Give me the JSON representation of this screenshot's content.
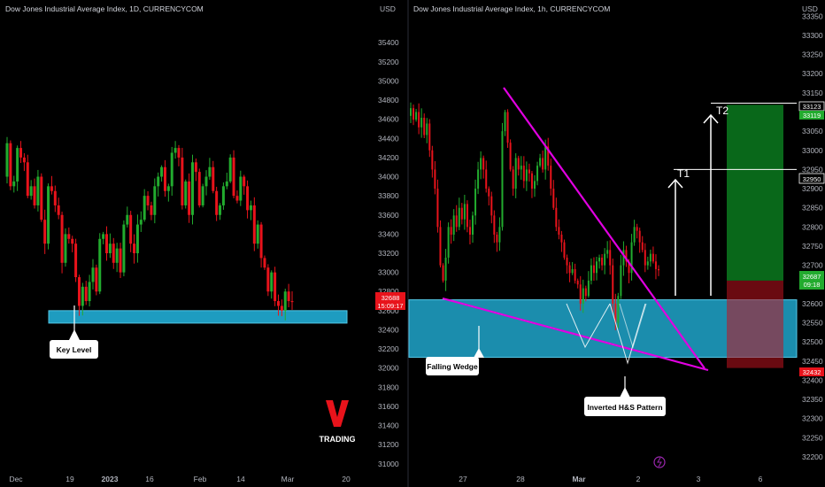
{
  "chart_data": [
    {
      "type": "candlestick",
      "title": "Dow Jones Industrial Average Index, 1D, CURRENCYCOM",
      "axis_unit": "USD",
      "x_ticks": [
        "Dec",
        "19",
        "2023",
        "16",
        "Feb",
        "14",
        "Mar",
        "20"
      ],
      "y_ticks": [
        31000,
        31200,
        31400,
        31600,
        31800,
        32000,
        32200,
        32400,
        32600,
        32800,
        33000,
        33200,
        33400,
        33600,
        33800,
        34000,
        34200,
        34400,
        34600,
        34800,
        35000,
        35200,
        35400
      ],
      "ylim": [
        30850,
        35550
      ],
      "last_price": "32688",
      "countdown": "15:09:17",
      "zone": {
        "from": 32470,
        "to": 32600,
        "color": "#1e9cc0"
      },
      "annotations": [
        "Key Level"
      ],
      "colors": {
        "up": "#22ab2e",
        "down": "#e8131b"
      }
    },
    {
      "type": "candlestick",
      "title": "Dow Jones Industrial Average Index, 1h, CURRENCYCOM",
      "axis_unit": "USD",
      "x_ticks": [
        "27",
        "28",
        "Mar",
        "2",
        "3",
        "6"
      ],
      "y_ticks": [
        32200,
        32250,
        32300,
        32350,
        32400,
        32450,
        32500,
        32550,
        32600,
        32650,
        32700,
        32750,
        32800,
        32850,
        32900,
        32950,
        33000,
        33050,
        33100,
        33150,
        33200,
        33250,
        33300,
        33350
      ],
      "ylim": [
        32170,
        33390
      ],
      "price_labels": {
        "t2_level": "33123",
        "target_high": "33119",
        "t1_level": "32950",
        "current": "32687",
        "current_time": "09:18",
        "stop": "32432"
      },
      "targets": [
        {
          "label": "T1",
          "price": 32950
        },
        {
          "label": "T2",
          "price": 33123
        }
      ],
      "zone": {
        "from": 32460,
        "to": 32610,
        "color": "#1e9cc0"
      },
      "position": {
        "entry": 32660,
        "target": 33119,
        "stop": 32432
      },
      "annotations": [
        "Falling Wedge",
        "Inverted H&S Pattern"
      ],
      "colors": {
        "up": "#22ab2e",
        "down": "#e8131b",
        "trendline": "#e100e1"
      }
    }
  ],
  "brand": {
    "logo": "V",
    "name": "TRADING",
    "logo_color": "#e8131b"
  }
}
